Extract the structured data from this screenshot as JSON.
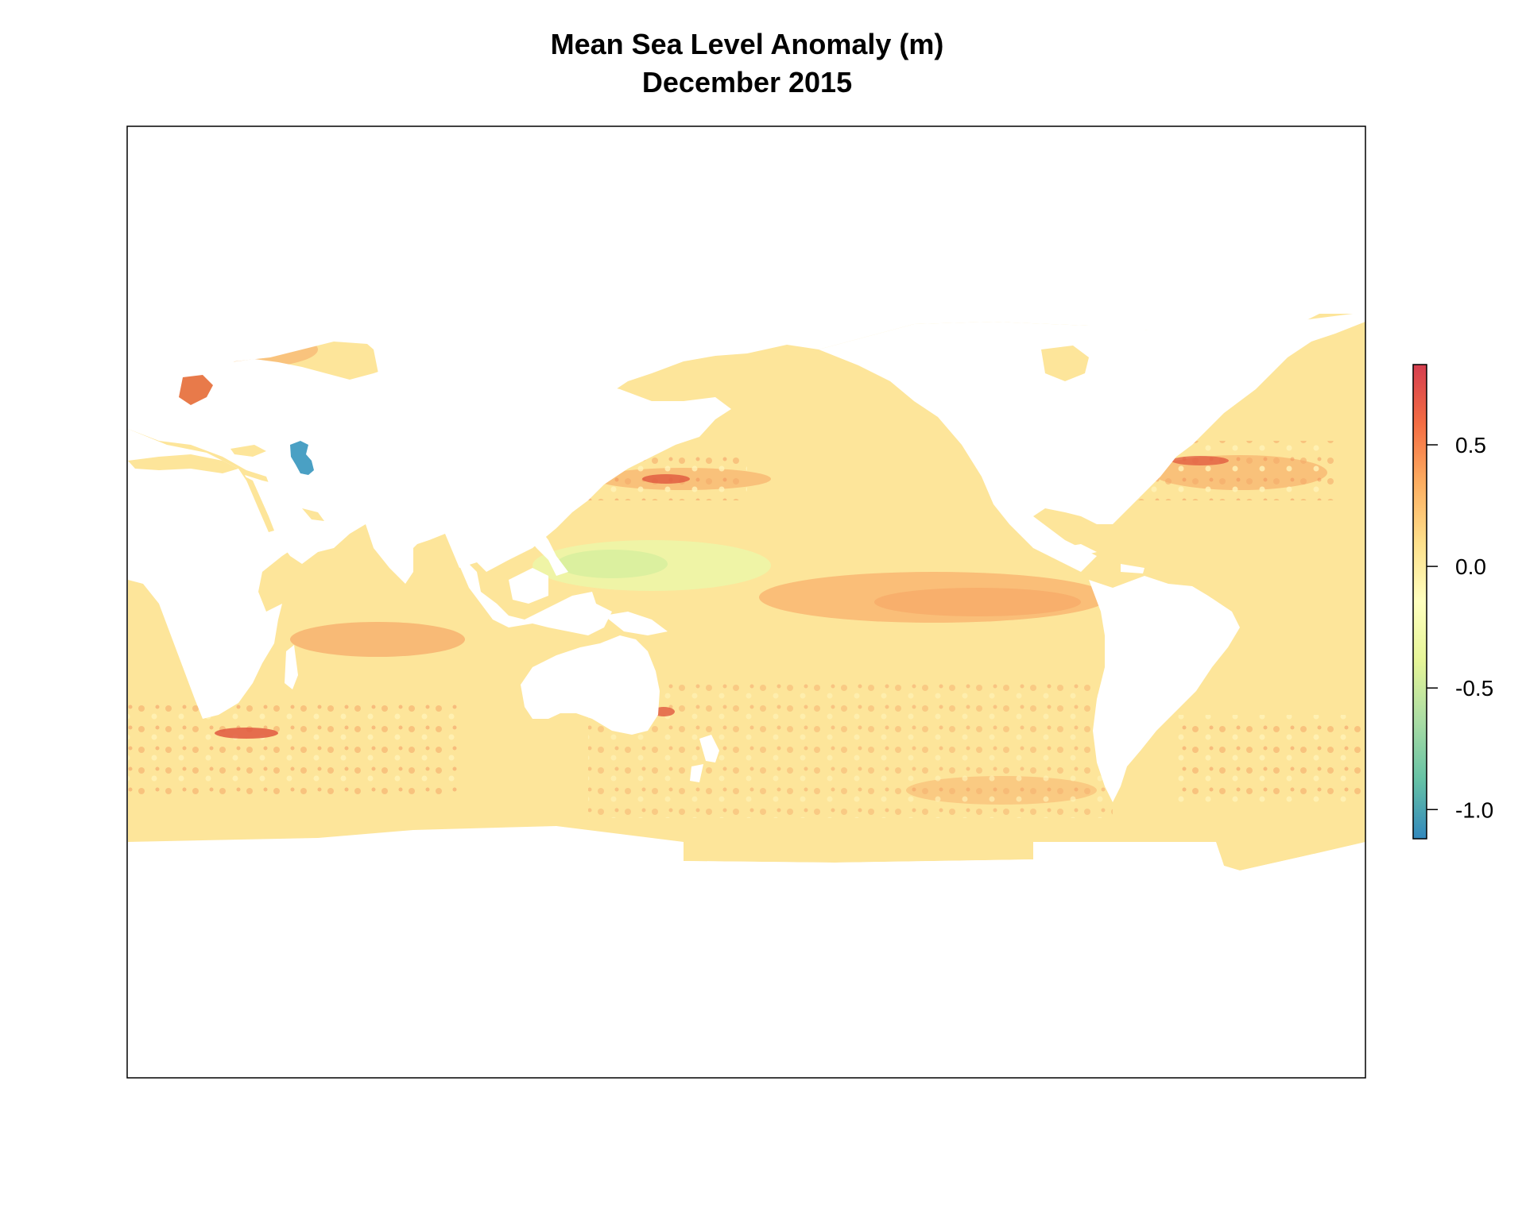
{
  "title": "Mean Sea Level Anomaly (m)",
  "subtitle": "December 2015",
  "colorbar": {
    "min": -1.12,
    "max": 0.83,
    "ticks": [
      {
        "value": 0.5,
        "label": "0.5"
      },
      {
        "value": 0.0,
        "label": "0.0"
      },
      {
        "value": -0.5,
        "label": "-0.5"
      },
      {
        "value": -1.0,
        "label": "-1.0"
      }
    ],
    "stops": [
      "#3288bd",
      "#66c2a5",
      "#abdda4",
      "#e6f598",
      "#ffffbf",
      "#fee08b",
      "#fdae61",
      "#f46d43",
      "#d53e4f"
    ]
  },
  "colors": {
    "ocean_base": "#fde59a",
    "ocean_warm": "#f9c47c",
    "ocean_hot": "#f2955a",
    "ocean_extreme": "#e0583f",
    "ocean_cool": "#eef4a6",
    "ocean_cooler": "#d8ef9f",
    "caspian": "#4aa0c4",
    "land": "#ffffff",
    "frame": "#000000"
  },
  "chart_data": {
    "type": "heatmap",
    "variable": "Mean Sea Level Anomaly",
    "units": "m",
    "period": "December 2015",
    "value_range": [
      -1.12,
      0.83
    ]
  }
}
